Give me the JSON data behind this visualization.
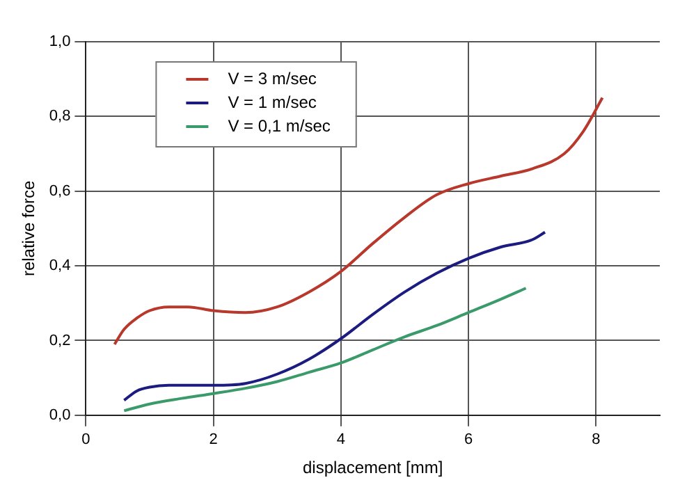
{
  "chart_data": {
    "type": "line",
    "xlabel": "displacement [mm]",
    "ylabel": "relative force",
    "xlim": [
      0,
      9
    ],
    "xticks": [
      0,
      2,
      4,
      6,
      8
    ],
    "ylim": [
      0,
      1
    ],
    "yticks": [
      {
        "value": 0,
        "label": "0,0"
      },
      {
        "value": 0.2,
        "label": "0,2"
      },
      {
        "value": 0.4,
        "label": "0,4"
      },
      {
        "value": 0.6,
        "label": "0,6"
      },
      {
        "value": 0.8,
        "label": "0,8"
      },
      {
        "value": 1,
        "label": "1,0"
      }
    ],
    "grid": true,
    "legend": "top left",
    "marker": "none",
    "line_style": "solid",
    "series": [
      {
        "name": "V = 3 m/sec",
        "color": "#b8382c",
        "x": [
          0.45,
          0.6,
          0.8,
          1.0,
          1.3,
          1.6,
          2,
          2.5,
          3,
          3.5,
          4,
          4.5,
          5,
          5.5,
          6,
          6.5,
          7,
          7.5,
          7.8,
          8.1
        ],
        "values": [
          0.19,
          0.23,
          0.26,
          0.28,
          0.29,
          0.29,
          0.28,
          0.275,
          0.29,
          0.33,
          0.385,
          0.46,
          0.53,
          0.59,
          0.62,
          0.64,
          0.66,
          0.7,
          0.76,
          0.85
        ]
      },
      {
        "name": "V = 1 m/sec",
        "color": "#1c1c80",
        "x": [
          0.6,
          0.8,
          1,
          1.3,
          2,
          2.5,
          3,
          3.5,
          4,
          4.5,
          5,
          5.5,
          6,
          6.5,
          7,
          7.2
        ],
        "values": [
          0.04,
          0.065,
          0.075,
          0.08,
          0.08,
          0.085,
          0.11,
          0.15,
          0.205,
          0.27,
          0.33,
          0.38,
          0.42,
          0.45,
          0.47,
          0.49
        ]
      },
      {
        "name": "V = 0,1 m/sec",
        "color": "#3a9a6a",
        "x": [
          0.6,
          1,
          1.5,
          2,
          2.5,
          3,
          3.5,
          4,
          4.5,
          5,
          5.5,
          6,
          6.5,
          6.9
        ],
        "values": [
          0.012,
          0.03,
          0.045,
          0.058,
          0.072,
          0.09,
          0.115,
          0.14,
          0.175,
          0.21,
          0.24,
          0.275,
          0.31,
          0.34
        ]
      }
    ]
  }
}
